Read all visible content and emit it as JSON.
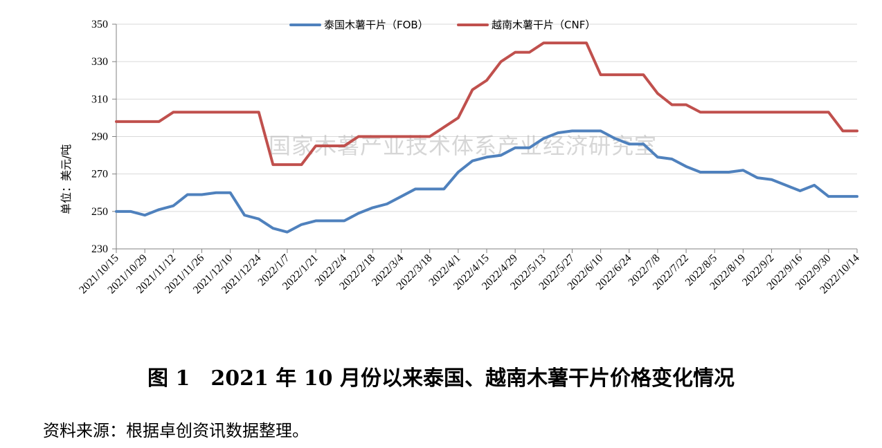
{
  "chart_data": {
    "type": "line",
    "title": "",
    "xlabel": "",
    "ylabel": "单位：美元/吨",
    "ylim": [
      230,
      350
    ],
    "yticks": [
      230,
      250,
      270,
      290,
      310,
      330,
      350
    ],
    "grid": "horizontal",
    "legend": "top-center",
    "watermark": "国家木薯产业技术体系产业经济研究室",
    "x_tick_labels": [
      "2021/10/15",
      "2021/10/29",
      "2021/11/12",
      "2021/11/26",
      "2021/12/10",
      "2021/12/24",
      "2022/1/7",
      "2022/1/21",
      "2022/2/4",
      "2022/2/18",
      "2022/3/4",
      "2022/3/18",
      "2022/4/1",
      "2022/4/15",
      "2022/4/29",
      "2022/5/13",
      "2022/5/27",
      "2022/6/10",
      "2022/6/24",
      "2022/7/8",
      "2022/7/22",
      "2022/8/5",
      "2022/8/19",
      "2022/9/2",
      "2022/9/16",
      "2022/9/30",
      "2022/10/14"
    ],
    "series": [
      {
        "name": "泰国木薯干片（FOB）",
        "color": "#4F81BD",
        "values": [
          250,
          250,
          248,
          251,
          253,
          259,
          259,
          260,
          260,
          248,
          246,
          241,
          239,
          243,
          245,
          245,
          245,
          249,
          252,
          254,
          258,
          262,
          262,
          262,
          271,
          277,
          279,
          280,
          284,
          284,
          289,
          292,
          293,
          293,
          293,
          289,
          286,
          286,
          279,
          278,
          274,
          271,
          271,
          271,
          272,
          268,
          267,
          264,
          261,
          264,
          258,
          258,
          258
        ]
      },
      {
        "name": "越南木薯干片（CNF）",
        "color": "#C0504D",
        "values": [
          298,
          298,
          298,
          298,
          303,
          303,
          303,
          303,
          303,
          303,
          303,
          275,
          275,
          275,
          285,
          285,
          285,
          290,
          290,
          290,
          290,
          290,
          290,
          295,
          300,
          315,
          320,
          330,
          335,
          335,
          340,
          340,
          340,
          340,
          323,
          323,
          323,
          323,
          313,
          307,
          307,
          303,
          303,
          303,
          303,
          303,
          303,
          303,
          303,
          303,
          303,
          293,
          293
        ]
      }
    ]
  },
  "caption": "图 1　2021 年 10 月份以来泰国、越南木薯干片价格变化情况",
  "source": "资料来源：根据卓创资讯数据整理。"
}
